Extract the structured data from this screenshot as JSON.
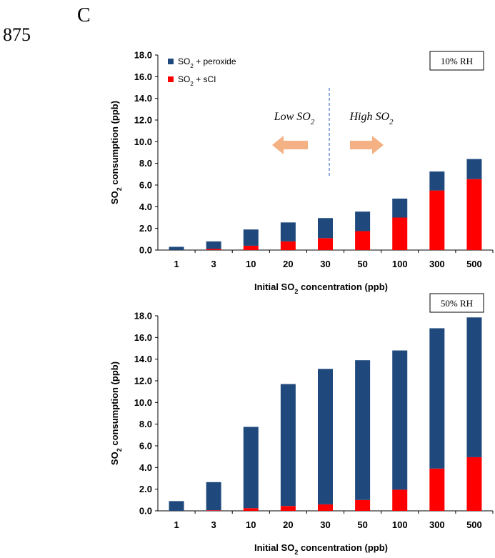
{
  "line_number": "875",
  "panel_letter": "C",
  "colors": {
    "peroxide": "#1f497d",
    "sci": "#ff0000",
    "arrow": "#f4b183",
    "divider": "#4472c4"
  },
  "annotations": {
    "low": "Low SO",
    "low_sub": "2",
    "high": "High SO",
    "high_sub": "2"
  },
  "chart_data": [
    {
      "type": "bar",
      "stacked": true,
      "categories": [
        "1",
        "3",
        "10",
        "20",
        "30",
        "50",
        "100",
        "300",
        "500"
      ],
      "series": [
        {
          "name_prefix": "SO",
          "name_sub": "2",
          "name_suffix": " + peroxide",
          "values": [
            0.3,
            0.7,
            1.5,
            1.75,
            1.85,
            1.8,
            1.75,
            1.75,
            1.85
          ]
        },
        {
          "name_prefix": "SO",
          "name_sub": "2",
          "name_suffix": " + sCI",
          "values": [
            0.0,
            0.1,
            0.4,
            0.8,
            1.1,
            1.75,
            3.0,
            5.5,
            6.55
          ]
        }
      ],
      "box_label": "10% RH",
      "xlabel_prefix": "Initial SO",
      "xlabel_sub": "2",
      "xlabel_suffix": " concentration (ppb)",
      "ylabel_prefix": "SO",
      "ylabel_sub": "2",
      "ylabel_suffix": " consumption (ppb)",
      "ylim": [
        0,
        18
      ],
      "yticks": [
        "0.0",
        "2.0",
        "4.0",
        "6.0",
        "8.0",
        "10.0",
        "12.0",
        "14.0",
        "16.0",
        "18.0"
      ],
      "legend_position": "top-left"
    },
    {
      "type": "bar",
      "stacked": true,
      "categories": [
        "1",
        "3",
        "10",
        "20",
        "30",
        "50",
        "100",
        "300",
        "500"
      ],
      "series": [
        {
          "name_prefix": "SO",
          "name_sub": "2",
          "name_suffix": " + peroxide",
          "values": [
            0.9,
            2.6,
            7.5,
            11.25,
            12.5,
            12.9,
            12.85,
            12.95,
            12.9
          ]
        },
        {
          "name_prefix": "SO",
          "name_sub": "2",
          "name_suffix": " + sCI",
          "values": [
            0.0,
            0.05,
            0.25,
            0.45,
            0.6,
            1.0,
            1.95,
            3.9,
            4.95
          ]
        }
      ],
      "box_label": "50% RH",
      "xlabel_prefix": "Initial SO",
      "xlabel_sub": "2",
      "xlabel_suffix": " concentration (ppb)",
      "ylabel_prefix": "SO",
      "ylabel_sub": "2",
      "ylabel_suffix": " consumption (ppb)",
      "ylim": [
        0,
        18
      ],
      "yticks": [
        "0.0",
        "2.0",
        "4.0",
        "6.0",
        "8.0",
        "10.0",
        "12.0",
        "14.0",
        "16.0",
        "18.0"
      ]
    }
  ]
}
